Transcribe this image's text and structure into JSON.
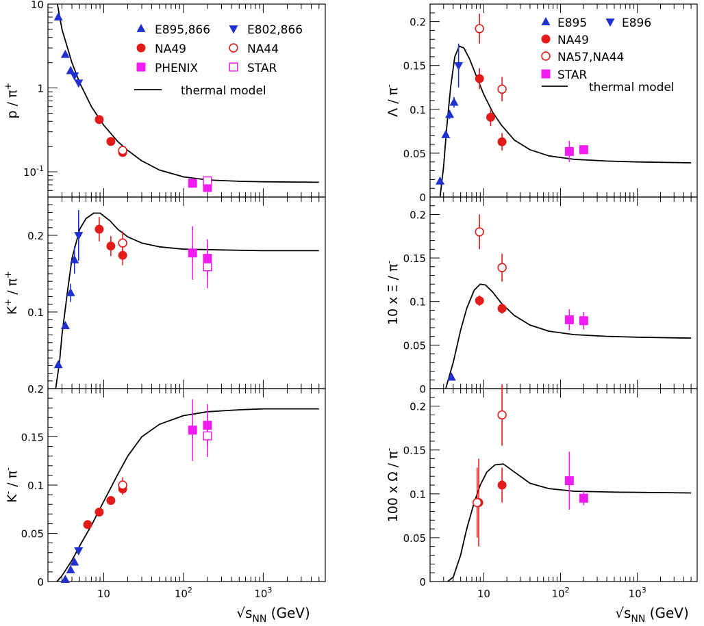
{
  "colors": {
    "blue": "#1f2fd0",
    "red": "#e11a1a",
    "magenta": "#f01cf0",
    "black": "#000000"
  },
  "x_axis": {
    "label_main": "√s",
    "label_sub": "NN",
    "label_unit": " (GeV)",
    "tick_values": [
      10,
      100,
      1000
    ],
    "tick_base": "10",
    "tick_exponents": [
      "",
      "2",
      "3"
    ],
    "xlim": [
      2,
      6000
    ]
  },
  "chart_data": [
    {
      "id": "p_pi",
      "type": "scatter",
      "yscale": "log",
      "ylim": [
        0.05,
        10
      ],
      "ylabel": {
        "main": "p / π",
        "sup": "+"
      },
      "ytick_labels": [
        {
          "v": 10,
          "base": "10",
          "exp": ""
        },
        {
          "v": 1,
          "base": "1",
          "exp": ""
        },
        {
          "v": 0.1,
          "base": "10",
          "exp": "-1"
        }
      ],
      "legend": {
        "entries": [
          {
            "marker": "tri-up",
            "color": "blue",
            "label": "E895,866"
          },
          {
            "marker": "tri-down",
            "color": "blue",
            "label": "E802,866"
          },
          {
            "marker": "circle",
            "color": "red",
            "label": "NA49"
          },
          {
            "marker": "circle-open",
            "color": "red",
            "label": "NA44"
          },
          {
            "marker": "square",
            "color": "magenta",
            "label": "PHENIX"
          },
          {
            "marker": "square-open",
            "color": "magenta",
            "label": "STAR"
          }
        ],
        "model_label": "thermal model"
      },
      "series": [
        {
          "name": "E895,866",
          "marker": "tri-up",
          "color": "blue",
          "points": [
            [
              2.7,
              7.0,
              0
            ],
            [
              3.3,
              2.5,
              0
            ],
            [
              3.85,
              1.6,
              0
            ]
          ]
        },
        {
          "name": "E802,866",
          "marker": "tri-down",
          "color": "blue",
          "points": [
            [
              4.3,
              1.4,
              0
            ],
            [
              4.85,
              1.15,
              0
            ]
          ]
        },
        {
          "name": "NA49",
          "marker": "circle",
          "color": "red",
          "points": [
            [
              8.8,
              0.42,
              0
            ],
            [
              12.3,
              0.23,
              0
            ],
            [
              17.3,
              0.17,
              0
            ]
          ]
        },
        {
          "name": "NA44",
          "marker": "circle-open",
          "color": "red",
          "points": [
            [
              17.3,
              0.18,
              0
            ]
          ]
        },
        {
          "name": "PHENIX",
          "marker": "square",
          "color": "magenta",
          "points": [
            [
              130,
              0.073,
              0.006
            ],
            [
              200,
              0.065,
              0.006
            ]
          ]
        },
        {
          "name": "STAR",
          "marker": "square-open",
          "color": "magenta",
          "points": [
            [
              200,
              0.078,
              0
            ]
          ]
        }
      ],
      "model": [
        [
          2.5,
          13
        ],
        [
          3,
          5
        ],
        [
          4,
          2.0
        ],
        [
          5,
          1.15
        ],
        [
          7,
          0.6
        ],
        [
          10,
          0.36
        ],
        [
          15,
          0.23
        ],
        [
          20,
          0.18
        ],
        [
          30,
          0.135
        ],
        [
          50,
          0.105
        ],
        [
          100,
          0.087
        ],
        [
          200,
          0.08
        ],
        [
          500,
          0.077
        ],
        [
          1000,
          0.076
        ],
        [
          5000,
          0.075
        ]
      ]
    },
    {
      "id": "kplus_pi",
      "type": "scatter",
      "yscale": "linear",
      "ylim": [
        0,
        0.25
      ],
      "ylabel": {
        "main": "K",
        "sup1": "+",
        "mid": " / π",
        "sup": "+"
      },
      "ytick_labels": [
        {
          "v": 0.1,
          "text": "0.1"
        },
        {
          "v": 0.2,
          "text": "0.2"
        }
      ],
      "series": [
        {
          "name": "E895,866",
          "marker": "tri-up",
          "color": "blue",
          "points": [
            [
              2.7,
              0.031,
              0
            ],
            [
              3.3,
              0.082,
              0
            ],
            [
              3.85,
              0.125,
              0.012
            ],
            [
              4.3,
              0.168,
              0.018
            ]
          ]
        },
        {
          "name": "E802,866",
          "marker": "tri-down",
          "color": "blue",
          "points": [
            [
              4.85,
              0.2,
              0.033
            ]
          ]
        },
        {
          "name": "NA49",
          "marker": "circle",
          "color": "red",
          "points": [
            [
              8.8,
              0.208,
              0.016
            ],
            [
              12.3,
              0.186,
              0.013
            ],
            [
              17.3,
              0.174,
              0.013
            ]
          ]
        },
        {
          "name": "NA44",
          "marker": "circle-open",
          "color": "red",
          "points": [
            [
              17.3,
              0.19,
              0.015
            ]
          ]
        },
        {
          "name": "PHENIX",
          "marker": "square",
          "color": "magenta",
          "points": [
            [
              130,
              0.177,
              0.035
            ],
            [
              200,
              0.17,
              0.025
            ]
          ]
        },
        {
          "name": "STAR",
          "marker": "square-open",
          "color": "magenta",
          "points": [
            [
              200,
              0.159,
              0.028
            ]
          ]
        }
      ],
      "model": [
        [
          2.5,
          0
        ],
        [
          2.8,
          0.035
        ],
        [
          3,
          0.07
        ],
        [
          3.5,
          0.125
        ],
        [
          4,
          0.17
        ],
        [
          5,
          0.208
        ],
        [
          6,
          0.222
        ],
        [
          7.5,
          0.229
        ],
        [
          9,
          0.229
        ],
        [
          12,
          0.219
        ],
        [
          15,
          0.208
        ],
        [
          20,
          0.198
        ],
        [
          30,
          0.19
        ],
        [
          50,
          0.185
        ],
        [
          100,
          0.182
        ],
        [
          300,
          0.181
        ],
        [
          1000,
          0.18
        ],
        [
          5000,
          0.18
        ]
      ]
    },
    {
      "id": "kminus_pi",
      "type": "scatter",
      "yscale": "linear",
      "ylim": [
        0,
        0.2
      ],
      "ylabel": {
        "main": "K",
        "sup1": "-",
        "mid": " / π",
        "sup": "-"
      },
      "ytick_labels": [
        {
          "v": 0,
          "text": "0"
        },
        {
          "v": 0.05,
          "text": "0.05"
        },
        {
          "v": 0.1,
          "text": "0.1"
        },
        {
          "v": 0.15,
          "text": "0.15"
        },
        {
          "v": 0.2,
          "text": "0.2"
        }
      ],
      "series": [
        {
          "name": "E895,866",
          "marker": "tri-up",
          "color": "blue",
          "points": [
            [
              3.3,
              0.002,
              0
            ],
            [
              3.85,
              0.012,
              0
            ],
            [
              4.3,
              0.02,
              0
            ]
          ]
        },
        {
          "name": "E802,866",
          "marker": "tri-down",
          "color": "blue",
          "points": [
            [
              4.85,
              0.032,
              0
            ]
          ]
        },
        {
          "name": "NA49",
          "marker": "circle",
          "color": "red",
          "points": [
            [
              6.3,
              0.059,
              0.003
            ],
            [
              8.8,
              0.072,
              0.004
            ],
            [
              12.3,
              0.084,
              0.004
            ],
            [
              17.3,
              0.096,
              0.006
            ]
          ]
        },
        {
          "name": "NA44",
          "marker": "circle-open",
          "color": "red",
          "points": [
            [
              17.3,
              0.1,
              0.008
            ]
          ]
        },
        {
          "name": "PHENIX",
          "marker": "square",
          "color": "magenta",
          "points": [
            [
              130,
              0.157,
              0.032
            ],
            [
              200,
              0.162,
              0.022
            ]
          ]
        },
        {
          "name": "STAR",
          "marker": "square-open",
          "color": "magenta",
          "points": [
            [
              200,
              0.151,
              0.022
            ]
          ]
        }
      ],
      "model": [
        [
          2.6,
          0
        ],
        [
          3,
          0.006
        ],
        [
          4,
          0.022
        ],
        [
          5,
          0.037
        ],
        [
          7,
          0.058
        ],
        [
          10,
          0.083
        ],
        [
          15,
          0.111
        ],
        [
          20,
          0.13
        ],
        [
          30,
          0.15
        ],
        [
          50,
          0.163
        ],
        [
          100,
          0.172
        ],
        [
          200,
          0.176
        ],
        [
          500,
          0.178
        ],
        [
          1000,
          0.179
        ],
        [
          5000,
          0.179
        ]
      ]
    },
    {
      "id": "lambda_pi",
      "type": "scatter",
      "yscale": "linear",
      "ylim": [
        0,
        0.22
      ],
      "ylabel": {
        "main": "Λ / π",
        "sup": "-"
      },
      "ytick_labels": [
        {
          "v": 0,
          "text": "0"
        },
        {
          "v": 0.05,
          "text": "0.05"
        },
        {
          "v": 0.1,
          "text": "0.1"
        },
        {
          "v": 0.15,
          "text": "0.15"
        },
        {
          "v": 0.2,
          "text": "0.2"
        }
      ],
      "legend": {
        "entries": [
          {
            "marker": "tri-up",
            "color": "blue",
            "label": "E895"
          },
          {
            "marker": "tri-down",
            "color": "blue",
            "label": "E896"
          },
          {
            "marker": "circle",
            "color": "red",
            "label": "NA49"
          },
          {
            "marker": "circle-open",
            "color": "red",
            "label": "NA57,NA44"
          },
          {
            "marker": "square",
            "color": "magenta",
            "label": "STAR"
          }
        ],
        "model_label": "thermal model"
      },
      "series": [
        {
          "name": "E895",
          "marker": "tri-up",
          "color": "blue",
          "points": [
            [
              2.7,
              0.018,
              0
            ],
            [
              3.2,
              0.071,
              0
            ],
            [
              3.6,
              0.094,
              0.005
            ],
            [
              4.1,
              0.108,
              0.006
            ]
          ]
        },
        {
          "name": "E896",
          "marker": "tri-down",
          "color": "blue",
          "points": [
            [
              4.7,
              0.15,
              0.025
            ]
          ]
        },
        {
          "name": "NA49",
          "marker": "circle",
          "color": "red",
          "points": [
            [
              8.8,
              0.135,
              0.012
            ],
            [
              12.3,
              0.091,
              0.01
            ],
            [
              17.3,
              0.063,
              0.01
            ]
          ]
        },
        {
          "name": "NA57,NA44",
          "marker": "circle-open",
          "color": "red",
          "points": [
            [
              8.8,
              0.192,
              0.017
            ],
            [
              17.3,
              0.123,
              0.014
            ]
          ]
        },
        {
          "name": "STAR",
          "marker": "square",
          "color": "magenta",
          "points": [
            [
              130,
              0.052,
              0.012
            ],
            [
              200,
              0.054,
              0.005
            ]
          ]
        }
      ],
      "model": [
        [
          2.7,
          0
        ],
        [
          3,
          0.035
        ],
        [
          3.3,
          0.08
        ],
        [
          3.7,
          0.125
        ],
        [
          4.2,
          0.16
        ],
        [
          4.8,
          0.172
        ],
        [
          5.5,
          0.17
        ],
        [
          6.5,
          0.158
        ],
        [
          8,
          0.138
        ],
        [
          10,
          0.117
        ],
        [
          13,
          0.097
        ],
        [
          17,
          0.082
        ],
        [
          25,
          0.065
        ],
        [
          40,
          0.054
        ],
        [
          70,
          0.047
        ],
        [
          150,
          0.043
        ],
        [
          400,
          0.041
        ],
        [
          1000,
          0.04
        ],
        [
          5000,
          0.039
        ]
      ]
    },
    {
      "id": "xi_pi",
      "type": "scatter",
      "yscale": "linear",
      "ylim": [
        0,
        0.22
      ],
      "ylabel": {
        "main": "10 x Ξ / π",
        "sup": "-"
      },
      "ytick_labels": [
        {
          "v": 0,
          "text": "0"
        },
        {
          "v": 0.05,
          "text": "0.05"
        },
        {
          "v": 0.1,
          "text": "0.1"
        },
        {
          "v": 0.15,
          "text": "0.15"
        },
        {
          "v": 0.2,
          "text": "0.2"
        }
      ],
      "series": [
        {
          "name": "E895",
          "marker": "tri-up",
          "color": "blue",
          "points": [
            [
              3.8,
              0.013,
              0
            ]
          ]
        },
        {
          "name": "NA49",
          "marker": "circle",
          "color": "red",
          "points": [
            [
              8.8,
              0.101,
              0.006
            ],
            [
              17.3,
              0.092,
              0.006
            ]
          ]
        },
        {
          "name": "NA57,NA44",
          "marker": "circle-open",
          "color": "red",
          "points": [
            [
              8.8,
              0.18,
              0.02
            ],
            [
              17.3,
              0.139,
              0.016
            ]
          ]
        },
        {
          "name": "STAR",
          "marker": "square",
          "color": "magenta",
          "points": [
            [
              130,
              0.079,
              0.012
            ],
            [
              200,
              0.078,
              0.01
            ]
          ]
        }
      ],
      "model": [
        [
          3.2,
          0
        ],
        [
          4,
          0.03
        ],
        [
          5,
          0.067
        ],
        [
          6,
          0.092
        ],
        [
          7.5,
          0.113
        ],
        [
          9,
          0.12
        ],
        [
          10.5,
          0.119
        ],
        [
          13,
          0.111
        ],
        [
          17,
          0.098
        ],
        [
          25,
          0.084
        ],
        [
          40,
          0.073
        ],
        [
          70,
          0.066
        ],
        [
          150,
          0.062
        ],
        [
          400,
          0.06
        ],
        [
          1000,
          0.059
        ],
        [
          5000,
          0.058
        ]
      ]
    },
    {
      "id": "omega_pi",
      "type": "scatter",
      "yscale": "linear",
      "ylim": [
        0,
        0.22
      ],
      "ylabel": {
        "main": "100 x Ω / π",
        "sup": "-"
      },
      "ytick_labels": [
        {
          "v": 0,
          "text": "0"
        },
        {
          "v": 0.05,
          "text": "0.05"
        },
        {
          "v": 0.1,
          "text": "0.1"
        },
        {
          "v": 0.15,
          "text": "0.15"
        },
        {
          "v": 0.2,
          "text": "0.2"
        }
      ],
      "series": [
        {
          "name": "NA49",
          "marker": "circle",
          "color": "red",
          "points": [
            [
              8.6,
              0.09,
              0.05
            ],
            [
              17.3,
              0.11,
              0.02
            ]
          ]
        },
        {
          "name": "NA57,NA44",
          "marker": "circle-open",
          "color": "red",
          "points": [
            [
              8.2,
              0.09,
              0.04
            ],
            [
              17.3,
              0.19,
              0.035
            ]
          ]
        },
        {
          "name": "STAR",
          "marker": "square",
          "color": "magenta",
          "points": [
            [
              130,
              0.115,
              0.033
            ],
            [
              200,
              0.095,
              0.008
            ]
          ]
        }
      ],
      "model": [
        [
          3.4,
          0
        ],
        [
          4,
          0.005
        ],
        [
          5,
          0.03
        ],
        [
          6,
          0.06
        ],
        [
          7.5,
          0.09
        ],
        [
          9,
          0.11
        ],
        [
          11,
          0.125
        ],
        [
          14,
          0.133
        ],
        [
          18,
          0.134
        ],
        [
          25,
          0.125
        ],
        [
          40,
          0.112
        ],
        [
          70,
          0.106
        ],
        [
          150,
          0.103
        ],
        [
          500,
          0.102
        ],
        [
          5000,
          0.101
        ]
      ]
    }
  ]
}
